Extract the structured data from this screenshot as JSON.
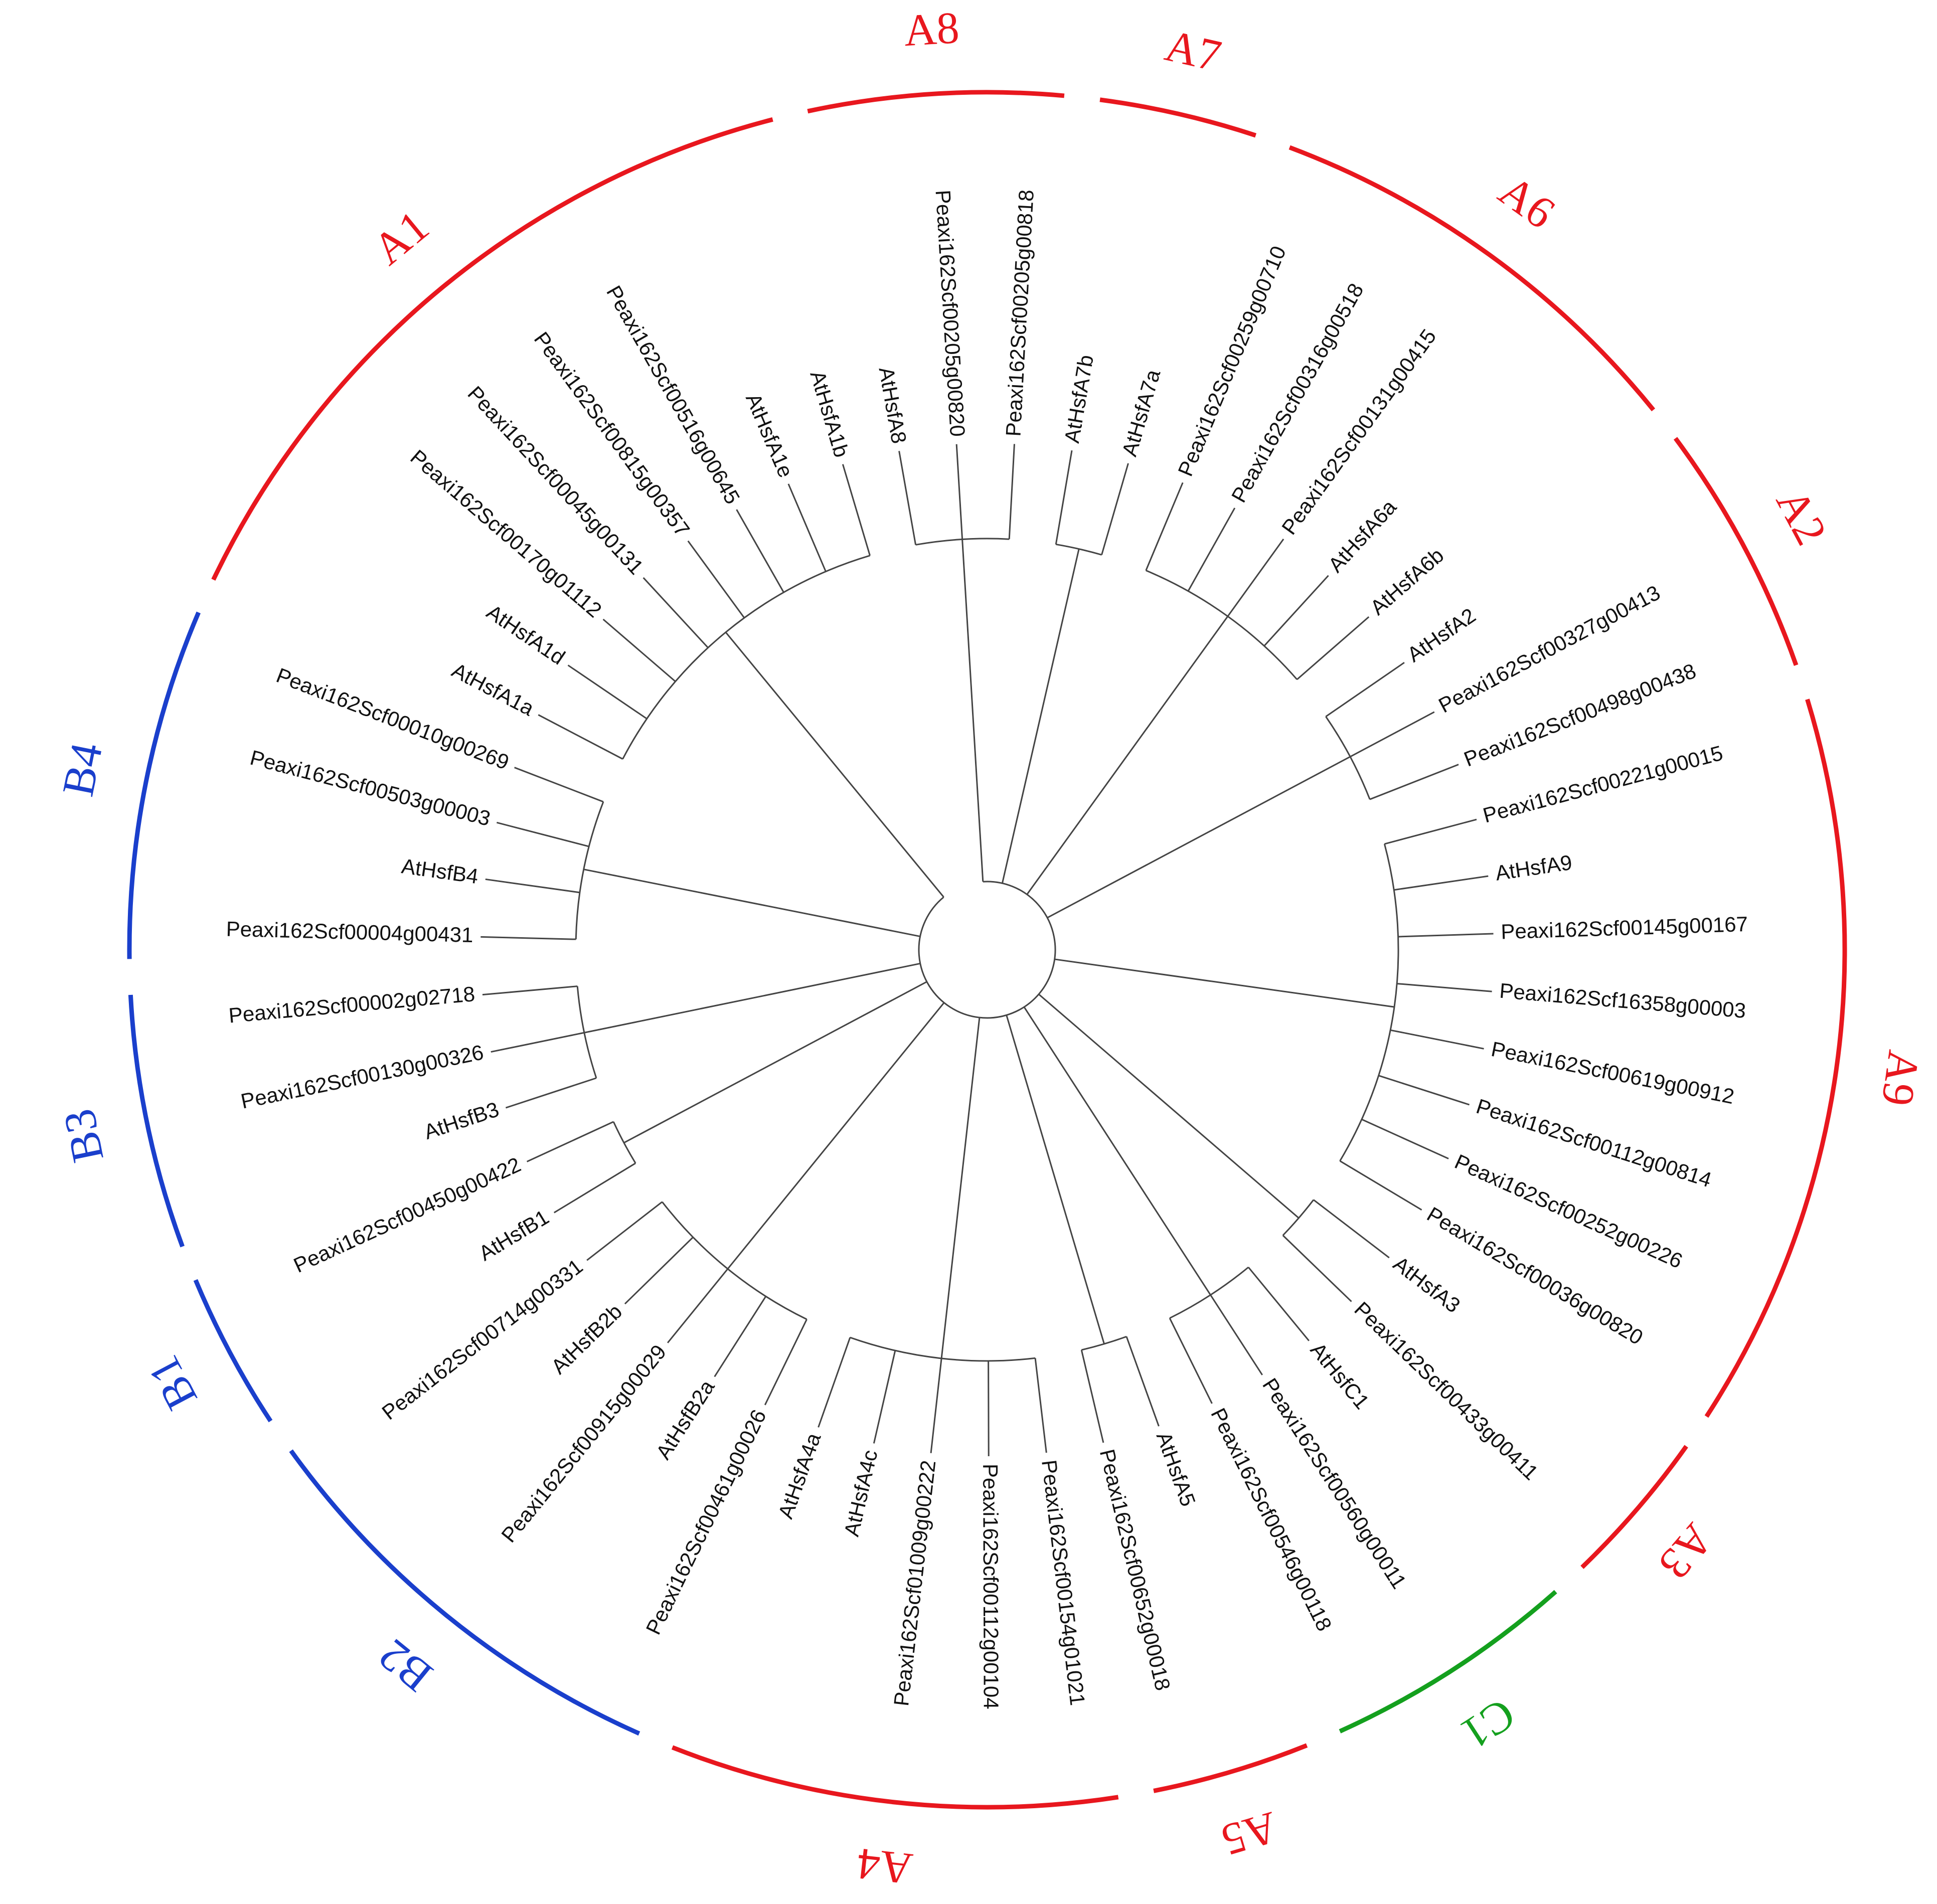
{
  "clades": [
    {
      "label": "A8",
      "color": "#e8171e",
      "leaves": [
        "AtHsfA8",
        "Peaxi162Scf00205g00820",
        "Peaxi162Scf00205g00818"
      ]
    },
    {
      "label": "A7",
      "color": "#e8171e",
      "leaves": [
        "AtHsfA7b",
        "AtHsfA7a"
      ]
    },
    {
      "label": "A6",
      "color": "#e8171e",
      "leaves": [
        "Peaxi162Scf00259g00710",
        "Peaxi162Scf00316g00518",
        "Peaxi162Scf00131g00415",
        "AtHsfA6a",
        "AtHsfA6b"
      ]
    },
    {
      "label": "A2",
      "color": "#e8171e",
      "leaves": [
        "AtHsfA2",
        "Peaxi162Scf00327g00413",
        "Peaxi162Scf00498g00438"
      ]
    },
    {
      "label": "A9",
      "color": "#e8171e",
      "leaves": [
        "Peaxi162Scf00221g00015",
        "AtHsfA9",
        "Peaxi162Scf00145g00167",
        "Peaxi162Scf16358g00003",
        "Peaxi162Scf00619g00912",
        "Peaxi162Scf00112g00814",
        "Peaxi162Scf00252g00226",
        "Peaxi162Scf00036g00820"
      ]
    },
    {
      "label": "A3",
      "color": "#e8171e",
      "leaves": [
        "AtHsfA3",
        "Peaxi162Scf00433g00411"
      ]
    },
    {
      "label": "C1",
      "color": "#14a01e",
      "leaves": [
        "AtHsfC1",
        "Peaxi162Scf00560g00011",
        "Peaxi162Scf00546g00118"
      ]
    },
    {
      "label": "A5",
      "color": "#e8171e",
      "leaves": [
        "AtHsfA5",
        "Peaxi162Scf00652g00018"
      ]
    },
    {
      "label": "A4",
      "color": "#e8171e",
      "leaves": [
        "Peaxi162Scf00154g01021",
        "Peaxi162Scf00112g00104",
        "Peaxi162Scf01009g00222",
        "AtHsfA4c",
        "AtHsfA4a"
      ]
    },
    {
      "label": "B2",
      "color": "#1a3fcc",
      "leaves": [
        "Peaxi162Scf00461g00026",
        "AtHsfB2a",
        "Peaxi162Scf00915g00029",
        "AtHsfB2b",
        "Peaxi162Scf00714g00331"
      ]
    },
    {
      "label": "B1",
      "color": "#1a3fcc",
      "leaves": [
        "AtHsfB1",
        "Peaxi162Scf00450g00422"
      ]
    },
    {
      "label": "B3",
      "color": "#1a3fcc",
      "leaves": [
        "AtHsfB3",
        "Peaxi162Scf00130g00326",
        "Peaxi162Scf00002g02718"
      ]
    },
    {
      "label": "B4",
      "color": "#1a3fcc",
      "leaves": [
        "Peaxi162Scf00004g00431",
        "AtHsfB4",
        "Peaxi162Scf00503g00003",
        "Peaxi162Scf00010g00269"
      ]
    },
    {
      "label": "A1",
      "color": "#e8171e",
      "leaves": [
        "AtHsfA1a",
        "AtHsfA1d",
        "Peaxi162Scf00170g01112",
        "Peaxi162Scf00045g00131",
        "Peaxi162Scf00815g00357",
        "Peaxi162Scf00516g00645",
        "AtHsfA1e",
        "AtHsfA1b"
      ]
    }
  ]
}
